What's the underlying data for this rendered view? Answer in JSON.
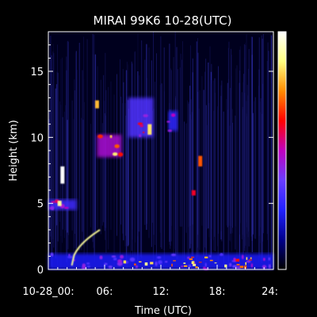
{
  "chart_data": {
    "type": "heatmap",
    "title": "MIRAI 99K6 10-28(UTC)",
    "xlabel": "Time (UTC)",
    "ylabel": "Height (km)",
    "xlim": [
      0,
      24
    ],
    "ylim": [
      0,
      18
    ],
    "x_ticks": [
      {
        "value": 0,
        "label": "10-28_00:"
      },
      {
        "value": 6,
        "label": "06:"
      },
      {
        "value": 12,
        "label": "12:"
      },
      {
        "value": 18,
        "label": "18:"
      },
      {
        "value": 24,
        "label": "24:"
      }
    ],
    "y_ticks": [
      {
        "value": 0,
        "label": "0"
      },
      {
        "value": 5,
        "label": "5"
      },
      {
        "value": 10,
        "label": "10"
      },
      {
        "value": 15,
        "label": "15"
      }
    ],
    "colorbar": {
      "placement": "right",
      "colors": [
        "#000000",
        "#00008b",
        "#2020ff",
        "#6a3cff",
        "#c000c0",
        "#ff0000",
        "#ff8c00",
        "#ffff80",
        "#ffffff"
      ]
    },
    "features": [
      {
        "kind": "near-surface layer",
        "t_start": 0,
        "t_end": 24,
        "h_min": 0,
        "h_max": 1.2,
        "intensity": 0.45
      },
      {
        "kind": "low layer",
        "t_start": 0,
        "t_end": 3,
        "h_min": 4.5,
        "h_max": 5.3,
        "intensity": 0.55
      },
      {
        "kind": "echo",
        "t_center": 1.5,
        "h_min": 6.5,
        "h_max": 7.8,
        "intensity": 1.0
      },
      {
        "kind": "echo",
        "t_center": 1.2,
        "h_min": 4.8,
        "h_max": 5.2,
        "intensity": 0.9
      },
      {
        "kind": "rising streak",
        "t_start": 2.5,
        "t_end": 5.5,
        "h_start": 0.3,
        "h_end": 3.0,
        "intensity": 0.9
      },
      {
        "kind": "echo",
        "t_center": 5.2,
        "h_min": 12.2,
        "h_max": 12.8,
        "intensity": 0.8
      },
      {
        "kind": "cloud",
        "t_start": 5.2,
        "t_end": 7.8,
        "h_min": 8.5,
        "h_max": 10.2,
        "intensity": 0.85
      },
      {
        "kind": "cloud",
        "t_start": 8.5,
        "t_end": 11.2,
        "h_min": 10.0,
        "h_max": 13.0,
        "intensity": 0.6
      },
      {
        "kind": "echo",
        "t_center": 10.8,
        "h_min": 10.2,
        "h_max": 11.0,
        "intensity": 0.85
      },
      {
        "kind": "cloud",
        "t_start": 12.8,
        "t_end": 13.8,
        "h_min": 10.5,
        "h_max": 12.0,
        "intensity": 0.5
      },
      {
        "kind": "echo",
        "t_center": 16.2,
        "h_min": 7.8,
        "h_max": 8.6,
        "intensity": 0.7
      },
      {
        "kind": "echo",
        "t_center": 15.5,
        "h_min": 5.6,
        "h_max": 6.0,
        "intensity": 0.6
      },
      {
        "kind": "surface echoes",
        "t_start": 8.0,
        "t_end": 24.0,
        "h_min": 0.2,
        "h_max": 1.0,
        "intensity": 0.9
      }
    ]
  }
}
